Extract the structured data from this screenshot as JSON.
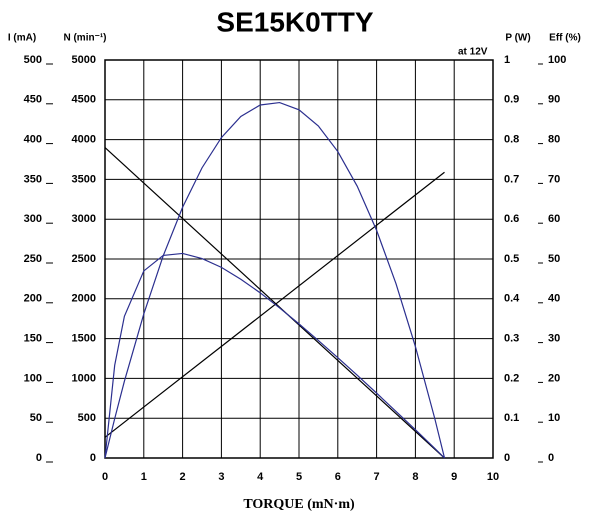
{
  "chart_data": {
    "type": "line",
    "title": "SE15K0TTY",
    "annotation": "at 12V",
    "xlabel": "TORQUE (mN·m)",
    "xlim": [
      0,
      10
    ],
    "xticks": [
      0,
      1,
      2,
      3,
      4,
      5,
      6,
      7,
      8,
      9,
      10
    ],
    "grid": true,
    "axes": [
      {
        "label": "I (mA)",
        "lim": [
          0,
          500
        ],
        "ticks": [
          0,
          50,
          100,
          150,
          200,
          250,
          300,
          350,
          400,
          450,
          500
        ]
      },
      {
        "label": "N (min⁻¹)",
        "lim": [
          0,
          5000
        ],
        "ticks": [
          0,
          500,
          1000,
          1500,
          2000,
          2500,
          3000,
          3500,
          4000,
          4500,
          5000
        ]
      },
      {
        "label": "P (W)",
        "lim": [
          0,
          1
        ],
        "ticks": [
          0,
          0.1,
          0.2,
          0.3,
          0.4,
          0.5,
          0.6,
          0.7,
          0.8,
          0.9,
          1
        ]
      },
      {
        "label": "Eff (%)",
        "lim": [
          0,
          100
        ],
        "ticks": [
          0,
          10,
          20,
          30,
          40,
          50,
          60,
          70,
          80,
          90,
          100
        ]
      }
    ],
    "series": [
      {
        "axis": 1,
        "color": "#000000",
        "x": [
          0,
          8.75
        ],
        "values": [
          3900,
          0
        ]
      },
      {
        "axis": 0,
        "color": "#000000",
        "x": [
          0,
          8.75
        ],
        "values": [
          26,
          359
        ]
      },
      {
        "axis": 2,
        "color": "#2b2f8f",
        "x": [
          0,
          0.25,
          0.5,
          1,
          1.5,
          2,
          2.5,
          3,
          3.5,
          4,
          4.5,
          5,
          5.5,
          6,
          6.5,
          7,
          7.5,
          8,
          8.5,
          8.75
        ],
        "values": [
          0,
          0.099,
          0.193,
          0.362,
          0.508,
          0.63,
          0.729,
          0.805,
          0.858,
          0.887,
          0.893,
          0.875,
          0.834,
          0.77,
          0.683,
          0.572,
          0.438,
          0.28,
          0.099,
          0
        ]
      },
      {
        "axis": 3,
        "color": "#2b2f8f",
        "x": [
          0,
          0.25,
          0.5,
          1,
          1.5,
          2,
          2.5,
          3,
          3.5,
          4,
          4.5,
          5,
          5.5,
          6,
          6.5,
          7,
          7.5,
          8,
          8.5,
          8.75
        ],
        "values": [
          0,
          23.3,
          35.6,
          47,
          50.9,
          51.4,
          50.1,
          47.9,
          44.9,
          41.5,
          37.7,
          33.7,
          29.5,
          25.2,
          20.8,
          16.3,
          11.7,
          7.1,
          2.4,
          0
        ]
      }
    ]
  }
}
